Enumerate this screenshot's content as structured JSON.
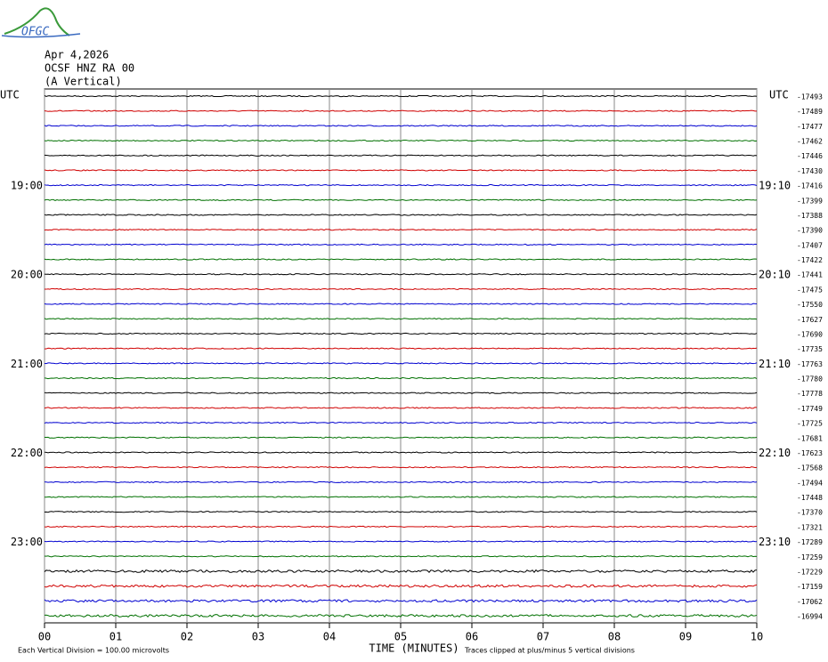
{
  "logo": {
    "text": "OFGC"
  },
  "header": {
    "date": "Apr 4,2026",
    "station": "OCSF HNZ RA 00",
    "component": "(A Vertical)"
  },
  "left_axis": {
    "label": "UTC",
    "hours": [
      "19:00",
      "20:00",
      "21:00",
      "22:00",
      "23:00"
    ]
  },
  "right_axis": {
    "label": "UTC",
    "hours": [
      "19:10",
      "20:10",
      "21:10",
      "22:10",
      "23:10"
    ],
    "offsets": [
      -17493,
      -17489,
      -17477,
      -17462,
      -17446,
      -17430,
      -17416,
      -17399,
      -17388,
      -17390,
      -17407,
      -17422,
      -17441,
      -17475,
      -17550,
      -17627,
      -17690,
      -17735,
      -17763,
      -17780,
      -17778,
      -17749,
      -17725,
      -17681,
      -17623,
      -17568,
      -17494,
      -17448,
      -17370,
      -17321,
      -17289,
      -17259,
      -17229,
      -17159,
      -17062,
      -16994
    ]
  },
  "trace_colors": [
    "#000000",
    "#d00000",
    "#0000d0",
    "#007000"
  ],
  "x_axis": {
    "ticks": [
      "00",
      "01",
      "02",
      "03",
      "04",
      "05",
      "06",
      "07",
      "08",
      "09",
      "10"
    ],
    "label": "TIME (MINUTES)"
  },
  "footer": {
    "scale": "Each Vertical Division =  100.00 microvolts",
    "clip": "Traces clipped at plus/minus 5 vertical divisions"
  }
}
